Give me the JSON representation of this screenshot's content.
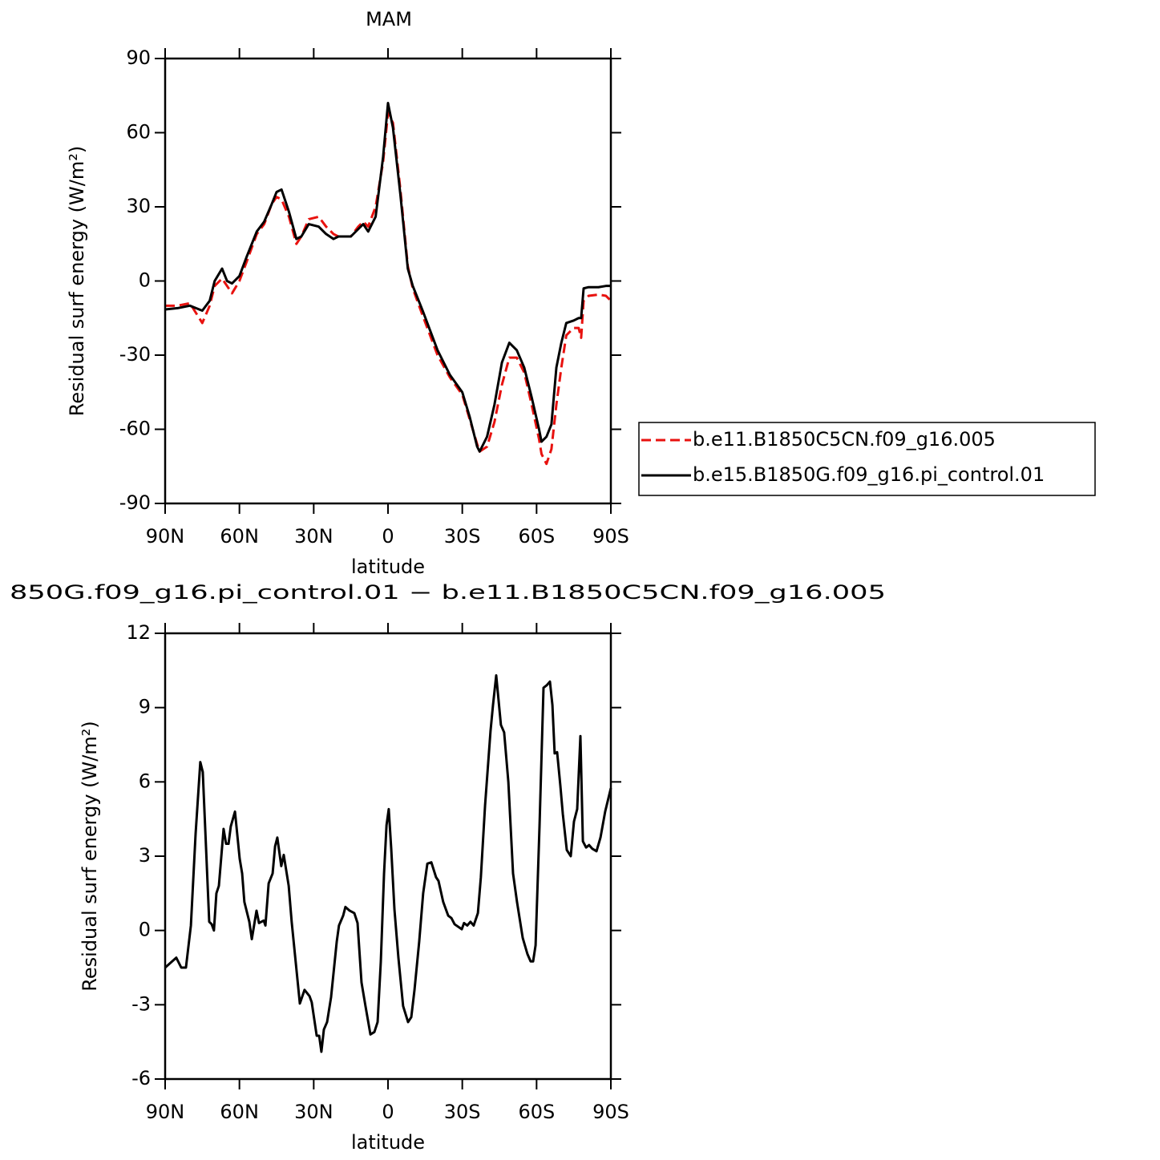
{
  "chart_data": [
    {
      "type": "line",
      "title": "MAM",
      "xlabel": "latitude",
      "ylabel": "Residual surf energy (W/m²)",
      "x": [
        90,
        85,
        80,
        75,
        72,
        70,
        67,
        65,
        63,
        60,
        57,
        53,
        50,
        47,
        45,
        43,
        40,
        37,
        35,
        32,
        28,
        25,
        22,
        20,
        15,
        12,
        10,
        8,
        5,
        2,
        0,
        -2,
        -5,
        -8,
        -10,
        -14,
        -17,
        -20,
        -25,
        -30,
        -33,
        -36,
        -37,
        -40,
        -43,
        -46,
        -49,
        -52,
        -55,
        -58,
        -61,
        -62,
        -64,
        -66,
        -68,
        -70,
        -72,
        -75,
        -77,
        -78,
        -79,
        -81,
        -85,
        -88,
        -90
      ],
      "series": [
        {
          "name": "b.e11.B1850C5CN.f09_g16.005",
          "color": "#e8120f",
          "line_style": "dashed",
          "values": [
            -10,
            -10,
            -9,
            -17,
            -10,
            -2,
            1,
            -2,
            -5,
            0,
            8,
            19,
            23,
            31,
            34,
            33,
            26,
            15,
            18,
            25,
            26,
            22,
            19,
            18,
            18,
            22,
            24,
            22,
            30,
            48,
            68,
            64,
            37,
            6,
            -3,
            -14,
            -22,
            -30,
            -39,
            -46,
            -56,
            -66,
            -69,
            -67,
            -57,
            -42,
            -31,
            -31,
            -37,
            -50,
            -64,
            -70,
            -74,
            -68,
            -50,
            -35,
            -22,
            -19,
            -19,
            -23,
            -8,
            -6,
            -5.5,
            -6,
            -8
          ]
        },
        {
          "name": "b.e15.B1850G.f09_g16.pi_control.01",
          "color": "#000000",
          "line_style": "solid",
          "values": [
            -11.5,
            -11,
            -10,
            -12,
            -8,
            0,
            5,
            0,
            -1,
            2,
            10,
            20,
            24,
            31,
            36,
            37,
            28,
            17,
            18,
            23,
            22,
            19,
            17,
            18,
            18,
            21,
            23,
            20,
            26,
            50,
            72,
            62,
            35,
            5,
            -2,
            -12,
            -20,
            -28,
            -38,
            -45,
            -55,
            -67,
            -69,
            -63,
            -50,
            -33,
            -25,
            -28,
            -35,
            -47,
            -60,
            -65,
            -63,
            -58,
            -35,
            -25,
            -17,
            -16,
            -15,
            -15,
            -3,
            -2.5,
            -2.5,
            -2,
            -2
          ]
        }
      ],
      "xlim": [
        90,
        -90
      ],
      "xticks": [
        {
          "value": 90,
          "label": "90N"
        },
        {
          "value": 60,
          "label": "60N"
        },
        {
          "value": 30,
          "label": "30N"
        },
        0,
        {
          "value": -30,
          "label": "30S"
        },
        {
          "value": -60,
          "label": "60S"
        },
        {
          "value": -90,
          "label": "90S"
        }
      ],
      "ylim": [
        -90,
        90
      ],
      "yticks": [
        -90,
        -60,
        -30,
        0,
        30,
        60,
        90
      ],
      "legend": "right"
    },
    {
      "type": "line",
      "title": "850G.f09_g16.pi_control.01 − b.e11.B1850C5CN.f09_g16.005",
      "xlabel": "latitude",
      "ylabel": "Residual surf energy (W/m²)",
      "x": [
        90,
        85.5,
        83.5,
        81.6,
        79.6,
        77.7,
        75.8,
        74.8,
        72.2,
        71.2,
        70.3,
        69.3,
        68.3,
        66.4,
        65.4,
        64.4,
        63.5,
        61.8,
        59.9,
        58.9,
        58,
        56,
        55,
        53.1,
        52.1,
        50.2,
        49.5,
        48.2,
        46.6,
        45.6,
        44.7,
        43.1,
        42.1,
        40.1,
        38.9,
        35.6,
        33.7,
        31.7,
        30.8,
        28.8,
        27.8,
        26.9,
        25.9,
        24.6,
        23,
        20.7,
        19.8,
        18.1,
        17.2,
        15.5,
        13.6,
        12.3,
        10.7,
        9.1,
        7.1,
        5.5,
        4.2,
        2.9,
        1.6,
        0.6,
        -0.3,
        -1.3,
        -2.6,
        -4.2,
        -6.1,
        -8.1,
        -9.4,
        -10.7,
        -12.6,
        -14.2,
        -15.9,
        -17.5,
        -19.4,
        -20.4,
        -22.3,
        -24.3,
        -25.6,
        -26.9,
        -29.8,
        -30.7,
        -32,
        -33.3,
        -34.6,
        -36.3,
        -37.5,
        -39.2,
        -41.4,
        -42.4,
        -43.7,
        -45.6,
        -46.9,
        -48.6,
        -50.5,
        -52.1,
        -54.4,
        -56.3,
        -57.6,
        -58.6,
        -59.6,
        -61.2,
        -62.8,
        -64.1,
        -65.4,
        -66.4,
        -67.3,
        -68.3,
        -69.6,
        -70.6,
        -72.2,
        -73.8,
        -75.1,
        -76.4,
        -77.7,
        -78.7,
        -80,
        -81.2,
        -82.5,
        -84.2,
        -85.8,
        -87.7,
        -90
      ],
      "series": [
        {
          "color": "#000000",
          "line_style": "solid",
          "values": [
            -1.5,
            -1.1,
            -1.5,
            -1.5,
            0.2,
            3.9,
            6.8,
            6.4,
            0.35,
            0.25,
            0,
            1.5,
            1.8,
            4.1,
            3.5,
            3.5,
            4.2,
            4.8,
            2.9,
            2.3,
            1.15,
            0.35,
            -0.35,
            0.8,
            0.3,
            0.4,
            0.2,
            1.9,
            2.3,
            3.4,
            3.75,
            2.6,
            3.05,
            1.8,
            0.35,
            -2.95,
            -2.4,
            -2.65,
            -2.9,
            -4.25,
            -4.25,
            -4.9,
            -4.0,
            -3.7,
            -2.7,
            -0.45,
            0.2,
            0.6,
            0.95,
            0.8,
            0.7,
            0.3,
            -2.1,
            -3.05,
            -4.2,
            -4.1,
            -3.7,
            -1.25,
            2.3,
            4.25,
            4.9,
            3.3,
            0.85,
            -1.1,
            -3.05,
            -3.7,
            -3.5,
            -2.4,
            -0.45,
            1.5,
            2.7,
            2.75,
            2.15,
            2.0,
            1.15,
            0.6,
            0.5,
            0.25,
            0.05,
            0.3,
            0.2,
            0.35,
            0.2,
            0.7,
            2.15,
            5.05,
            8.05,
            9.1,
            10.3,
            8.3,
            8.0,
            6.0,
            2.3,
            1.15,
            -0.3,
            -0.95,
            -1.25,
            -1.25,
            -0.6,
            4.25,
            9.8,
            9.9,
            10.05,
            9.1,
            7.15,
            7.2,
            5.85,
            4.7,
            3.25,
            3.0,
            4.4,
            4.9,
            7.85,
            3.6,
            3.35,
            3.45,
            3.3,
            3.2,
            3.75,
            4.8,
            5.75
          ]
        }
      ],
      "xlim": [
        90,
        -90
      ],
      "xticks": [
        {
          "value": 90,
          "label": "90N"
        },
        {
          "value": 60,
          "label": "60N"
        },
        {
          "value": 30,
          "label": "30N"
        },
        0,
        {
          "value": -30,
          "label": "30S"
        },
        {
          "value": -60,
          "label": "60S"
        },
        {
          "value": -90,
          "label": "90S"
        }
      ],
      "ylim": [
        -6,
        12
      ],
      "yticks": [
        -6,
        -3,
        0,
        3,
        6,
        9,
        12
      ]
    }
  ]
}
